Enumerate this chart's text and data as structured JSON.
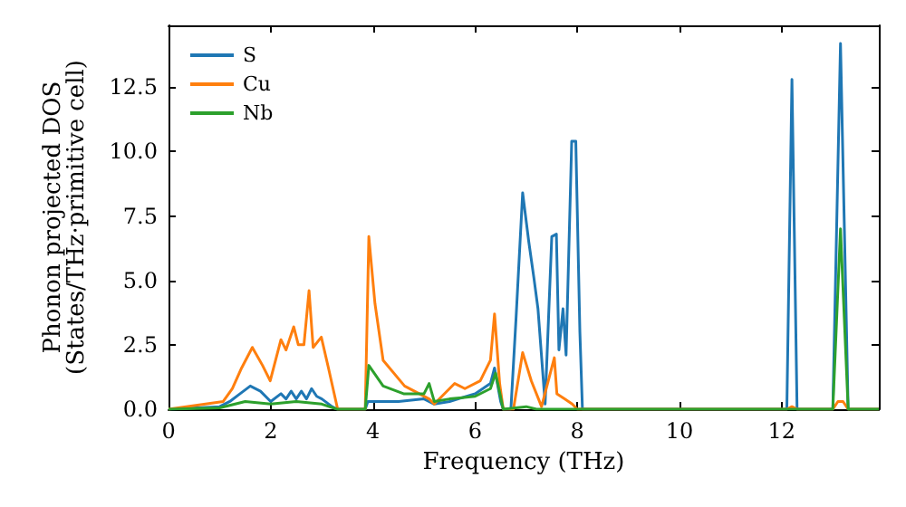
{
  "chart_data": {
    "type": "line",
    "xlabel": "Frequency (THz)",
    "ylabel": "Phonon projected DOS\n(States/THz·primitive cell)",
    "xlim": [
      0,
      13.9
    ],
    "xticks": [
      0,
      2,
      4,
      6,
      8,
      10,
      12
    ],
    "ylim": [
      0,
      14.9
    ],
    "yticks": [
      {
        "value": 0,
        "label": "0.0"
      },
      2.5,
      {
        "value": 5,
        "label": "5.0"
      },
      7.5,
      {
        "value": 10,
        "label": "10.0"
      },
      12.5
    ],
    "grid": false,
    "legend": "top left",
    "marker": "none",
    "line_style": "solid",
    "series": [
      {
        "name": "S",
        "color": "#1f77b4",
        "x": [
          0,
          1.0,
          1.2,
          1.4,
          1.6,
          1.8,
          2.0,
          2.2,
          2.3,
          2.4,
          2.5,
          2.6,
          2.7,
          2.8,
          2.9,
          3.0,
          3.2,
          3.3,
          3.85,
          3.9,
          4.5,
          5.0,
          5.2,
          5.5,
          6.0,
          6.3,
          6.38,
          6.5,
          6.55,
          6.7,
          6.8,
          6.93,
          7.05,
          7.15,
          7.23,
          7.37,
          7.5,
          7.59,
          7.64,
          7.72,
          7.78,
          7.89,
          7.97,
          8.05,
          8.1,
          12.1,
          12.2,
          12.3,
          13.0,
          13.15,
          13.3,
          13.9
        ],
        "values": [
          0,
          0.1,
          0.3,
          0.6,
          0.9,
          0.7,
          0.3,
          0.6,
          0.4,
          0.7,
          0.4,
          0.7,
          0.4,
          0.8,
          0.5,
          0.4,
          0.1,
          0,
          0,
          0.3,
          0.3,
          0.4,
          0.2,
          0.3,
          0.6,
          1.0,
          1.6,
          0.3,
          0,
          0,
          3.5,
          8.4,
          6.5,
          5.1,
          3.9,
          0.2,
          6.7,
          6.8,
          2.3,
          3.9,
          2.1,
          10.4,
          10.4,
          3,
          0,
          0,
          12.8,
          0,
          0,
          14.2,
          0,
          0
        ]
      },
      {
        "name": "Cu",
        "color": "#ff7f0e",
        "x": [
          0,
          1.07,
          1.25,
          1.43,
          1.64,
          1.84,
          1.99,
          2.2,
          2.3,
          2.45,
          2.54,
          2.65,
          2.75,
          2.83,
          2.99,
          3.13,
          3.31,
          3.85,
          3.92,
          4.04,
          4.2,
          4.62,
          5.1,
          5.2,
          5.6,
          5.8,
          6.1,
          6.3,
          6.38,
          6.48,
          6.55,
          6.75,
          6.93,
          7.1,
          7.3,
          7.55,
          7.6,
          7.75,
          7.9,
          8.0,
          12.1,
          12.2,
          12.3,
          13.0,
          13.1,
          13.2,
          13.3,
          13.9
        ],
        "values": [
          0,
          0.3,
          0.8,
          1.6,
          2.4,
          1.7,
          1.1,
          2.7,
          2.3,
          3.2,
          2.5,
          2.5,
          4.6,
          2.4,
          2.8,
          1.6,
          0,
          0,
          6.7,
          4.1,
          1.9,
          0.9,
          0.4,
          0.2,
          1.0,
          0.8,
          1.1,
          1.9,
          3.7,
          1.0,
          0,
          0,
          2.2,
          1.1,
          0.1,
          2.0,
          0.6,
          0.4,
          0.2,
          0,
          0,
          0.1,
          0,
          0,
          0.3,
          0.3,
          0,
          0
        ]
      },
      {
        "name": "Nb",
        "color": "#2ca02c",
        "x": [
          0,
          1.0,
          1.5,
          2.0,
          2.5,
          3.0,
          3.3,
          3.85,
          3.92,
          4.2,
          4.6,
          5.0,
          5.1,
          5.2,
          5.5,
          6.0,
          6.3,
          6.4,
          6.55,
          7.0,
          7.2,
          13.0,
          13.15,
          13.3,
          13.9
        ],
        "values": [
          0,
          0.05,
          0.3,
          0.2,
          0.3,
          0.2,
          0,
          0,
          1.7,
          0.9,
          0.6,
          0.6,
          1.0,
          0.3,
          0.4,
          0.5,
          0.8,
          1.4,
          0,
          0.1,
          0,
          0,
          7.0,
          0,
          0
        ]
      }
    ]
  }
}
